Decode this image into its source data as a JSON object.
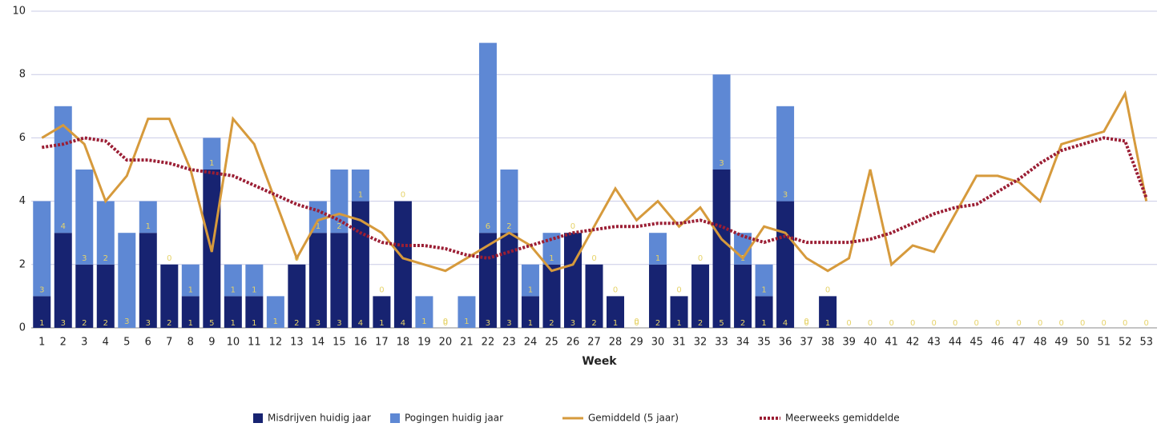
{
  "chart_data": {
    "type": "bar",
    "stacked": true,
    "x_label": "Week",
    "categories": [
      "1",
      "2",
      "3",
      "4",
      "5",
      "6",
      "7",
      "8",
      "9",
      "10",
      "11",
      "12",
      "13",
      "14",
      "15",
      "16",
      "17",
      "18",
      "19",
      "20",
      "21",
      "22",
      "23",
      "24",
      "25",
      "26",
      "27",
      "28",
      "29",
      "30",
      "31",
      "32",
      "33",
      "34",
      "35",
      "36",
      "37",
      "38",
      "39",
      "40",
      "41",
      "42",
      "43",
      "44",
      "45",
      "46",
      "47",
      "48",
      "49",
      "50",
      "51",
      "52",
      "53"
    ],
    "ylim": [
      0,
      10
    ],
    "yticks": [
      0,
      2,
      4,
      6,
      8,
      10
    ],
    "grid": true,
    "series": [
      {
        "name": "Misdrijven huidig jaar",
        "type": "bar",
        "color": "#172371",
        "values": [
          1,
          3,
          2,
          2,
          0,
          3,
          2,
          1,
          5,
          1,
          1,
          0,
          2,
          3,
          3,
          4,
          1,
          4,
          0,
          0,
          0,
          3,
          3,
          1,
          2,
          3,
          2,
          1,
          0,
          2,
          1,
          2,
          5,
          2,
          1,
          4,
          0,
          1,
          0,
          0,
          0,
          0,
          0,
          0,
          0,
          0,
          0,
          0,
          0,
          0,
          0,
          0,
          0
        ]
      },
      {
        "name": "Pogingen huidig jaar",
        "type": "bar",
        "color": "#5e88d4",
        "values": [
          3,
          4,
          3,
          2,
          3,
          1,
          0,
          1,
          1,
          1,
          1,
          1,
          0,
          1,
          2,
          1,
          0,
          0,
          1,
          0,
          1,
          6,
          2,
          1,
          1,
          0,
          0,
          0,
          0,
          1,
          0,
          0,
          3,
          1,
          1,
          3,
          0,
          0,
          null,
          null,
          null,
          null,
          null,
          null,
          null,
          null,
          null,
          null,
          null,
          null,
          null,
          null,
          null
        ]
      },
      {
        "name": "Gemiddeld (5 jaar)",
        "type": "line",
        "style": "solid",
        "color": "#d69a3c",
        "values": [
          6,
          6.4,
          5.8,
          4,
          4.8,
          6.6,
          6.6,
          5,
          2.4,
          6.6,
          5.8,
          4,
          2.2,
          3.4,
          3.6,
          3.4,
          3,
          2.2,
          2,
          1.8,
          2.2,
          2.6,
          3,
          2.6,
          1.8,
          2,
          3.2,
          4.4,
          3.4,
          4,
          3.2,
          3.8,
          2.8,
          2.2,
          3.2,
          3,
          2.2,
          1.8,
          2.2,
          5,
          2,
          2.6,
          2.4,
          3.6,
          4.8,
          4.8,
          4.6,
          4,
          5.8,
          6,
          6.2,
          7.4,
          4
        ]
      },
      {
        "name": "Meerweeks gemiddelde",
        "type": "line",
        "style": "dotted",
        "color": "#9b1e34",
        "values": [
          5.7,
          5.8,
          6,
          5.9,
          5.3,
          5.3,
          5.2,
          5,
          4.9,
          4.8,
          4.5,
          4.2,
          3.9,
          3.7,
          3.4,
          3,
          2.7,
          2.6,
          2.6,
          2.5,
          2.3,
          2.2,
          2.4,
          2.6,
          2.8,
          3,
          3.1,
          3.2,
          3.2,
          3.3,
          3.3,
          3.4,
          3.2,
          2.9,
          2.7,
          2.9,
          2.7,
          2.7,
          2.7,
          2.8,
          3,
          3.3,
          3.6,
          3.8,
          3.9,
          4.3,
          4.7,
          5.2,
          5.6,
          5.8,
          6,
          5.9,
          4.1
        ]
      }
    ]
  }
}
